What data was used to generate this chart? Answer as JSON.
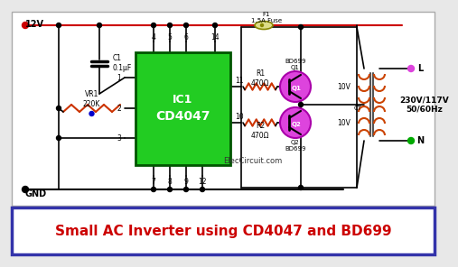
{
  "bg_color": "#e8e8e8",
  "circuit_bg": "#ffffff",
  "title_text": "Small AC Inverter using CD4047 and BD699",
  "title_color": "#cc0000",
  "title_bg": "#ffffff",
  "title_border": "#3333aa",
  "ic_color": "#22cc22",
  "ic_label1": "IC1",
  "ic_label2": "CD4047",
  "transistor_color": "#dd44dd",
  "transistor_edge": "#aa00aa",
  "wire_color": "#000000",
  "red_wire": "#cc0000",
  "resistor_color": "#cc3300",
  "watermark": "ElecCircuit.com",
  "voltage_out": "230V/117V\n50/60Hz",
  "vcc_label": "12V",
  "gnd_label": "GND",
  "fuse_label": "F1\n1.5A Fuse",
  "c1_label": "C1\n0.1μF",
  "vr1_label": "VR1\n220K",
  "r1_label": "R1\n470Ω",
  "r2_label": "R2\n470Ω",
  "q1_label": "BD699\nQ1",
  "q2_label": "Q2\nBD699",
  "ct_label": "CT",
  "v10_top": "10V",
  "v10_bot": "10V",
  "l_label": "L",
  "n_label": "N",
  "coil_color": "#cc4400",
  "transformer_bg": "#dddddd",
  "fuse_fill": "#dddd88",
  "fuse_edge": "#888800",
  "vr1_arrow_color": "#0000cc",
  "dot_red": "#cc0000",
  "dot_black": "#000000",
  "dot_green": "#00aa00",
  "dot_pink": "#dd44dd"
}
